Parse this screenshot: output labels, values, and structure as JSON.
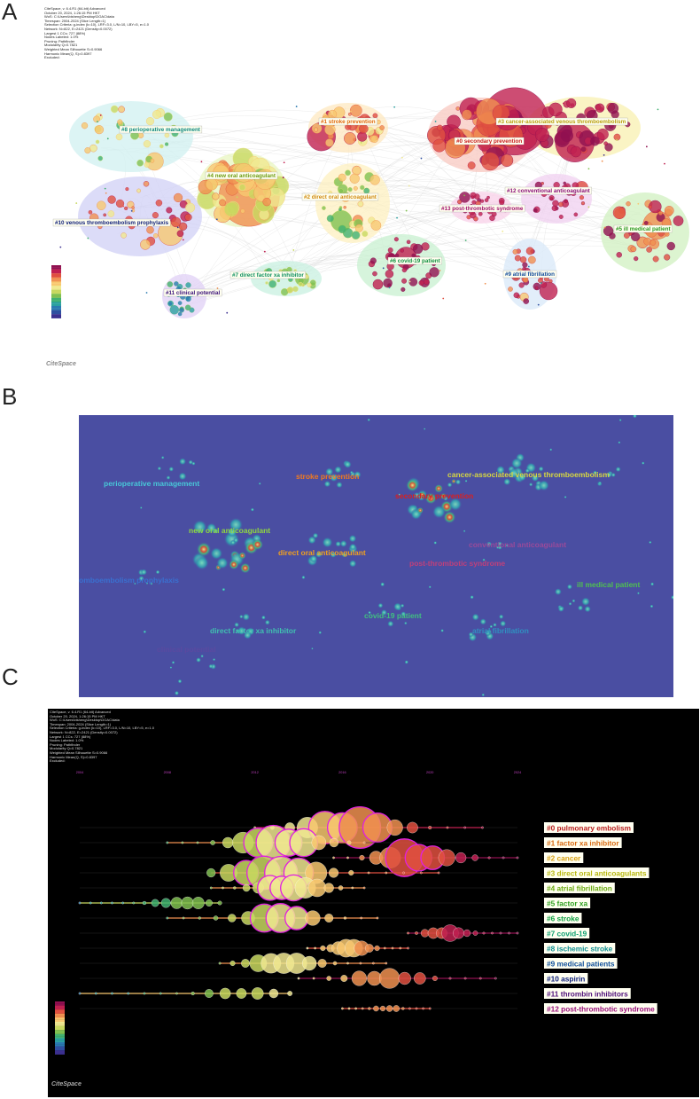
{
  "figure": {
    "panels": [
      "A",
      "B",
      "C"
    ]
  },
  "panel_a": {
    "software_header": [
      "CiteSpace, v. 6.4.R1 (64-bit) Advanced",
      "October 20, 2024, 1:26:15 PM HKT",
      "WoS: C:\\Users\\bisheng\\Desktop\\DOAC\\data",
      "Timespan: 2004-2024 (Slice Length=1)",
      "Selection Criteria: g-index (k=10), LRF=3.0, L/N=10, LBY=5, e=1.0",
      "Network: N=822, E=2421 (Density=0.0072)",
      "Largest 1 CCs: 727 (88%)",
      "Nodes Labeled: 1.0%",
      "Pruning: Pathfinder",
      "Modularity Q=0.7821",
      "Weighted Mean Silhouette S=0.9066",
      "Harmonic Mean(Q, S)=0.8397",
      "Excluded:"
    ],
    "clusters": [
      {
        "label": "#0 secondary prevention",
        "color": "#c81c1c"
      },
      {
        "label": "#1 stroke prevention",
        "color": "#e06a10"
      },
      {
        "label": "#2 direct oral anticoagulant",
        "color": "#d08a10"
      },
      {
        "label": "#3 cancer-associated venous thromboembolism",
        "color": "#b8a010"
      },
      {
        "label": "#4 new oral anticoagulant",
        "color": "#6a9a10"
      },
      {
        "label": "#5 ill medical patient",
        "color": "#2a9a20"
      },
      {
        "label": "#6 covid-19 patient",
        "color": "#109040"
      },
      {
        "label": "#7 direct factor xa inhibitor",
        "color": "#109060"
      },
      {
        "label": "#8 perioperative management",
        "color": "#108a80"
      },
      {
        "label": "#9 atrial fibrillation",
        "color": "#104a9a"
      },
      {
        "label": "#10 venous thromboembolism prophylaxis",
        "color": "#10207a"
      },
      {
        "label": "#11 clinical potential",
        "color": "#3a107a"
      },
      {
        "label": "#12 conventional anticoagulant",
        "color": "#8a107a"
      },
      {
        "label": "#13 post-thrombotic syndrome",
        "color": "#a0106a"
      }
    ],
    "logo": "CiteSpace"
  },
  "panel_b": {
    "labels": [
      {
        "text": "perioperative management",
        "color": "#48c8d8"
      },
      {
        "text": "stroke prevention",
        "color": "#f07a20"
      },
      {
        "text": "secondary prevention",
        "color": "#d82020"
      },
      {
        "text": "cancer-associated venous thromboembolism",
        "color": "#d8d840"
      },
      {
        "text": "new oral anticoagulant",
        "color": "#90d840"
      },
      {
        "text": "direct oral anticoagulant",
        "color": "#f0a020"
      },
      {
        "text": "conventional anticoagulant",
        "color": "#9a4a9a"
      },
      {
        "text": "post-thrombotic syndrome",
        "color": "#c0407a"
      },
      {
        "text": "omboembolism prophylaxis",
        "color": "#3a70d0"
      },
      {
        "text": "ill medical patient",
        "color": "#50c050"
      },
      {
        "text": "covid-19 patient",
        "color": "#40c080"
      },
      {
        "text": "direct factor xa inhibitor",
        "color": "#40c0b0"
      },
      {
        "text": "atrial fibrillation",
        "color": "#3090c0"
      },
      {
        "text": "clinical potential",
        "color": "#5a4aa0"
      }
    ]
  },
  "panel_c": {
    "software_header": [
      "CiteSpace, v. 6.4.R1 (64-bit) Advanced",
      "October 20, 2024, 1:26:15 PM HKT",
      "WoS: C:\\Users\\bisheng\\Desktop\\DOAC\\data",
      "Timespan: 2004-2024 (Slice Length=1)",
      "Selection Criteria: g-index (k=10), LRF=3.0, L/N=10, LBY=5, e=1.0",
      "Network: N=822, E=2421 (Density=0.0072)",
      "Largest 1 CCs: 727 (88%)",
      "Nodes Labeled: 1.0%",
      "Pruning: Pathfinder",
      "Modularity Q=0.7821",
      "Weighted Mean Silhouette S=0.9066",
      "Harmonic Mean(Q, S)=0.8397",
      "Excluded:"
    ],
    "years": [
      "2004",
      "2008",
      "2012",
      "2016",
      "2020",
      "2024"
    ],
    "clusters": [
      {
        "label": "#0 pulmonary embolism",
        "color": "#b81c1c"
      },
      {
        "label": "#1 factor xa inhibitor",
        "color": "#d86a10"
      },
      {
        "label": "#2 cancer",
        "color": "#d8a010"
      },
      {
        "label": "#3 direct oral anticoagulants",
        "color": "#b8b810"
      },
      {
        "label": "#4 atrial fibrillation",
        "color": "#6aaa10"
      },
      {
        "label": "#5 factor xa",
        "color": "#30a020"
      },
      {
        "label": "#6 stroke",
        "color": "#10a040"
      },
      {
        "label": "#7 covid-19",
        "color": "#10a070"
      },
      {
        "label": "#8 ischemic stroke",
        "color": "#109090"
      },
      {
        "label": "#9 medical patients",
        "color": "#10509a"
      },
      {
        "label": "#10 aspirin",
        "color": "#10207a"
      },
      {
        "label": "#11 thrombin inhibitors",
        "color": "#50107a"
      },
      {
        "label": "#12 post-thrombotic syndrome",
        "color": "#9a107a"
      }
    ],
    "logo": "CiteSpace"
  }
}
